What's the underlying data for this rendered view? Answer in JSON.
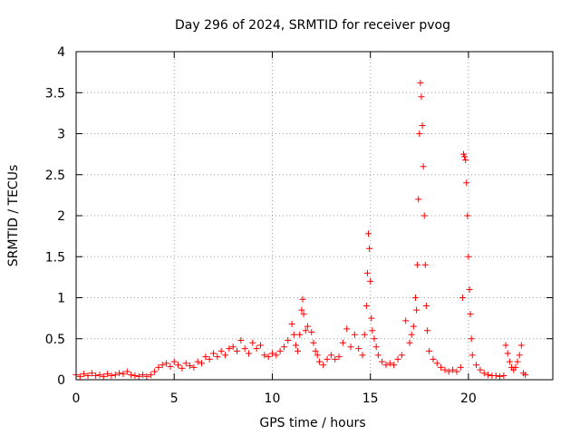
{
  "chart_data": {
    "type": "scatter",
    "title": "Day 296 of 2024, SRMTID for receiver pvog",
    "xlabel": "GPS time / hours",
    "ylabel": "SRMTID / TECUs",
    "xlim": [
      0,
      24.3
    ],
    "ylim": [
      0,
      4
    ],
    "xticks": [
      {
        "value": 0,
        "label": "0"
      },
      {
        "value": 5,
        "label": "5"
      },
      {
        "value": 10,
        "label": "10"
      },
      {
        "value": 15,
        "label": "15"
      },
      {
        "value": 20,
        "label": "20"
      }
    ],
    "yticks": [
      {
        "value": 0,
        "label": "0"
      },
      {
        "value": 0.5,
        "label": "0.5"
      },
      {
        "value": 1,
        "label": "1"
      },
      {
        "value": 1.5,
        "label": "1.5"
      },
      {
        "value": 2,
        "label": "2"
      },
      {
        "value": 2.5,
        "label": "2.5"
      },
      {
        "value": 3,
        "label": "3"
      },
      {
        "value": 3.5,
        "label": "3.5"
      },
      {
        "value": 4,
        "label": "4"
      }
    ],
    "grid": true,
    "marker": "+",
    "series": [
      {
        "name": "SRMTID",
        "color": "#ff0000",
        "points": [
          [
            0.0,
            0.06
          ],
          [
            0.2,
            0.04
          ],
          [
            0.4,
            0.07
          ],
          [
            0.6,
            0.05
          ],
          [
            0.8,
            0.08
          ],
          [
            1.0,
            0.05
          ],
          [
            1.2,
            0.06
          ],
          [
            1.4,
            0.04
          ],
          [
            1.6,
            0.07
          ],
          [
            1.8,
            0.05
          ],
          [
            2.0,
            0.06
          ],
          [
            2.2,
            0.08
          ],
          [
            2.4,
            0.07
          ],
          [
            2.6,
            0.1
          ],
          [
            2.8,
            0.06
          ],
          [
            3.0,
            0.05
          ],
          [
            3.2,
            0.04
          ],
          [
            3.4,
            0.06
          ],
          [
            3.6,
            0.04
          ],
          [
            3.8,
            0.06
          ],
          [
            4.0,
            0.1
          ],
          [
            4.2,
            0.15
          ],
          [
            4.4,
            0.18
          ],
          [
            4.6,
            0.2
          ],
          [
            4.8,
            0.16
          ],
          [
            5.0,
            0.22
          ],
          [
            5.2,
            0.18
          ],
          [
            5.4,
            0.14
          ],
          [
            5.6,
            0.2
          ],
          [
            5.8,
            0.17
          ],
          [
            6.0,
            0.15
          ],
          [
            6.2,
            0.22
          ],
          [
            6.4,
            0.2
          ],
          [
            6.6,
            0.28
          ],
          [
            6.8,
            0.25
          ],
          [
            7.0,
            0.32
          ],
          [
            7.2,
            0.28
          ],
          [
            7.4,
            0.35
          ],
          [
            7.6,
            0.3
          ],
          [
            7.8,
            0.38
          ],
          [
            8.0,
            0.4
          ],
          [
            8.2,
            0.35
          ],
          [
            8.4,
            0.48
          ],
          [
            8.6,
            0.38
          ],
          [
            8.8,
            0.32
          ],
          [
            9.0,
            0.45
          ],
          [
            9.2,
            0.38
          ],
          [
            9.4,
            0.42
          ],
          [
            9.6,
            0.3
          ],
          [
            9.8,
            0.28
          ],
          [
            10.0,
            0.32
          ],
          [
            10.2,
            0.3
          ],
          [
            10.4,
            0.35
          ],
          [
            10.6,
            0.4
          ],
          [
            10.8,
            0.48
          ],
          [
            11.0,
            0.68
          ],
          [
            11.1,
            0.55
          ],
          [
            11.2,
            0.42
          ],
          [
            11.3,
            0.35
          ],
          [
            11.4,
            0.55
          ],
          [
            11.5,
            0.85
          ],
          [
            11.55,
            0.98
          ],
          [
            11.6,
            0.8
          ],
          [
            11.7,
            0.6
          ],
          [
            11.8,
            0.65
          ],
          [
            12.0,
            0.58
          ],
          [
            12.1,
            0.45
          ],
          [
            12.2,
            0.35
          ],
          [
            12.3,
            0.3
          ],
          [
            12.4,
            0.22
          ],
          [
            12.6,
            0.18
          ],
          [
            12.8,
            0.25
          ],
          [
            13.0,
            0.3
          ],
          [
            13.2,
            0.25
          ],
          [
            13.4,
            0.28
          ],
          [
            13.6,
            0.45
          ],
          [
            13.8,
            0.62
          ],
          [
            14.0,
            0.4
          ],
          [
            14.2,
            0.55
          ],
          [
            14.4,
            0.38
          ],
          [
            14.6,
            0.3
          ],
          [
            14.7,
            0.55
          ],
          [
            14.8,
            0.9
          ],
          [
            14.85,
            1.3
          ],
          [
            14.9,
            1.78
          ],
          [
            14.95,
            1.6
          ],
          [
            15.0,
            1.2
          ],
          [
            15.05,
            0.75
          ],
          [
            15.1,
            0.6
          ],
          [
            15.2,
            0.5
          ],
          [
            15.3,
            0.4
          ],
          [
            15.4,
            0.3
          ],
          [
            15.6,
            0.22
          ],
          [
            15.8,
            0.18
          ],
          [
            16.0,
            0.2
          ],
          [
            16.2,
            0.18
          ],
          [
            16.4,
            0.25
          ],
          [
            16.6,
            0.3
          ],
          [
            16.8,
            0.72
          ],
          [
            17.0,
            0.45
          ],
          [
            17.1,
            0.55
          ],
          [
            17.2,
            0.65
          ],
          [
            17.3,
            1.0
          ],
          [
            17.35,
            0.85
          ],
          [
            17.4,
            1.4
          ],
          [
            17.45,
            2.2
          ],
          [
            17.5,
            3.0
          ],
          [
            17.55,
            3.62
          ],
          [
            17.6,
            3.45
          ],
          [
            17.65,
            3.1
          ],
          [
            17.7,
            2.6
          ],
          [
            17.75,
            2.0
          ],
          [
            17.8,
            1.4
          ],
          [
            17.85,
            0.9
          ],
          [
            17.9,
            0.6
          ],
          [
            18.0,
            0.35
          ],
          [
            18.2,
            0.25
          ],
          [
            18.4,
            0.2
          ],
          [
            18.6,
            0.15
          ],
          [
            18.8,
            0.12
          ],
          [
            19.0,
            0.1
          ],
          [
            19.2,
            0.12
          ],
          [
            19.4,
            0.1
          ],
          [
            19.6,
            0.15
          ],
          [
            19.7,
            1.0
          ],
          [
            19.75,
            2.75
          ],
          [
            19.8,
            2.72
          ],
          [
            19.85,
            2.68
          ],
          [
            19.9,
            2.4
          ],
          [
            19.95,
            2.0
          ],
          [
            20.0,
            1.5
          ],
          [
            20.05,
            1.1
          ],
          [
            20.1,
            0.8
          ],
          [
            20.15,
            0.5
          ],
          [
            20.2,
            0.3
          ],
          [
            20.4,
            0.18
          ],
          [
            20.6,
            0.12
          ],
          [
            20.8,
            0.08
          ],
          [
            21.0,
            0.06
          ],
          [
            21.2,
            0.05
          ],
          [
            21.4,
            0.05
          ],
          [
            21.6,
            0.04
          ],
          [
            21.8,
            0.05
          ],
          [
            21.9,
            0.42
          ],
          [
            22.0,
            0.32
          ],
          [
            22.1,
            0.22
          ],
          [
            22.2,
            0.15
          ],
          [
            22.3,
            0.12
          ],
          [
            22.4,
            0.15
          ],
          [
            22.5,
            0.22
          ],
          [
            22.6,
            0.3
          ],
          [
            22.7,
            0.42
          ],
          [
            22.8,
            0.08
          ],
          [
            22.9,
            0.06
          ]
        ]
      }
    ]
  }
}
